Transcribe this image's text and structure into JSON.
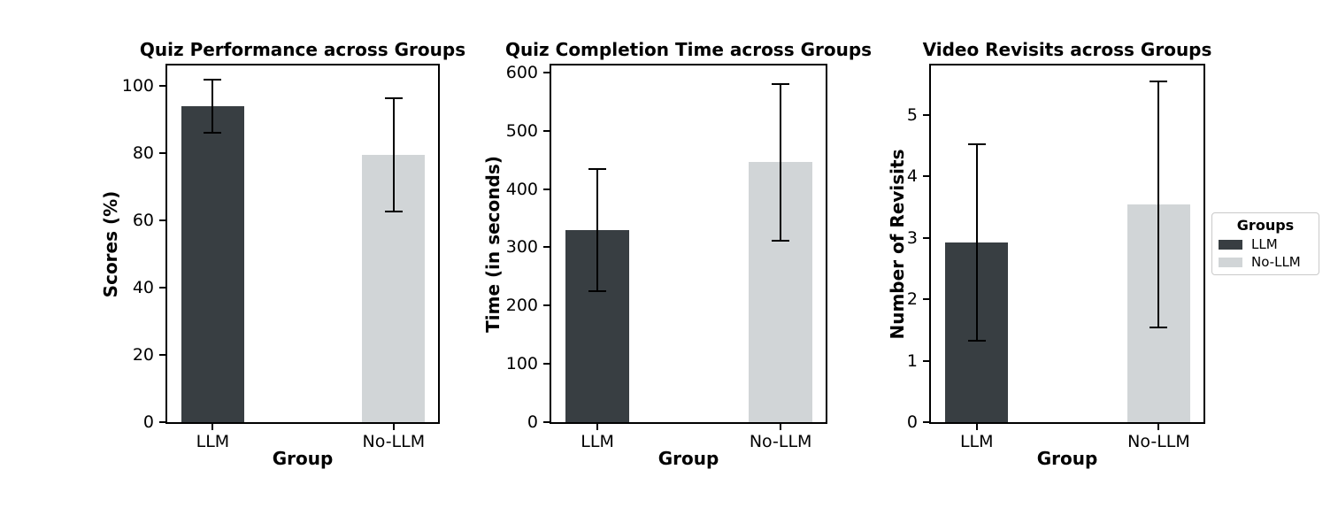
{
  "figure": {
    "background": "#ffffff",
    "text_color": "#000000",
    "error_bar_color": "#000000"
  },
  "colors": {
    "llm": "#383e42",
    "no_llm": "#d1d5d7"
  },
  "legend": {
    "title": "Groups",
    "items": [
      {
        "label": "LLM",
        "color": "#383e42"
      },
      {
        "label": "No-LLM",
        "color": "#d1d5d7"
      }
    ]
  },
  "chart_data": [
    {
      "type": "bar",
      "title": "Quiz Performance across Groups",
      "xlabel": "Group",
      "ylabel": "Scores (%)",
      "categories": [
        "LLM",
        "No-LLM"
      ],
      "values": [
        93.9,
        79.5
      ],
      "errors": [
        8.0,
        16.8
      ],
      "bar_colors": [
        "#383e42",
        "#d1d5d7"
      ],
      "y_ticks": [
        0,
        20,
        40,
        60,
        80,
        100
      ],
      "ylim": [
        0,
        106
      ],
      "grid": false,
      "legend_position": "none"
    },
    {
      "type": "bar",
      "title": "Quiz Completion Time across Groups",
      "xlabel": "Group",
      "ylabel": "Time (in seconds)",
      "categories": [
        "LLM",
        "No-LLM"
      ],
      "values": [
        330,
        446
      ],
      "errors": [
        105,
        134
      ],
      "bar_colors": [
        "#383e42",
        "#d1d5d7"
      ],
      "y_ticks": [
        0,
        100,
        200,
        300,
        400,
        500,
        600
      ],
      "ylim": [
        0,
        612
      ],
      "grid": false,
      "legend_position": "none"
    },
    {
      "type": "bar",
      "title": "Video Revisits across Groups",
      "xlabel": "Group",
      "ylabel": "Number of Revisits",
      "categories": [
        "LLM",
        "No-LLM"
      ],
      "values": [
        2.92,
        3.54
      ],
      "errors": [
        1.6,
        2.0
      ],
      "bar_colors": [
        "#383e42",
        "#d1d5d7"
      ],
      "y_ticks": [
        0,
        1,
        2,
        3,
        4,
        5
      ],
      "ylim": [
        0,
        5.8
      ],
      "grid": false,
      "legend_position": "outside-right"
    }
  ]
}
